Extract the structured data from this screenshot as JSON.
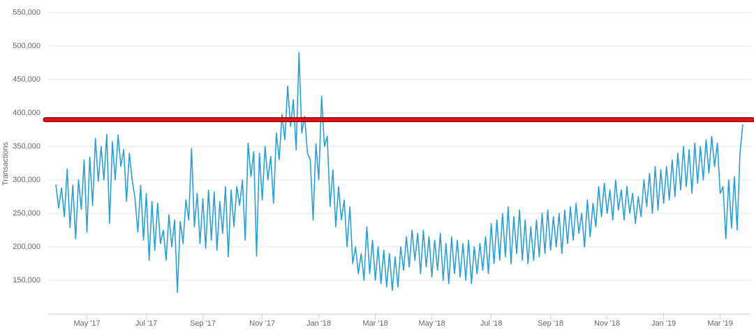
{
  "chart_data": {
    "type": "line",
    "y_label": "Transactions",
    "categories": [
      null,
      null,
      null,
      null,
      null,
      null,
      null,
      null,
      null,
      null,
      null,
      "May '17",
      null,
      null,
      null,
      null,
      null,
      null,
      null,
      null,
      null,
      null,
      null,
      null,
      null,
      null,
      null,
      null,
      null,
      null,
      null,
      null,
      "Jul '17",
      null,
      null,
      null,
      null,
      null,
      null,
      null,
      null,
      null,
      null,
      null,
      null,
      null,
      null,
      null,
      null,
      null,
      null,
      null,
      "Sep '17",
      null,
      null,
      null,
      null,
      null,
      null,
      null,
      null,
      null,
      null,
      null,
      null,
      null,
      null,
      null,
      null,
      null,
      null,
      null,
      null,
      "Nov '17",
      null,
      null,
      null,
      null,
      null,
      null,
      null,
      null,
      null,
      null,
      null,
      null,
      null,
      null,
      null,
      null,
      null,
      null,
      null,
      "Jan '18",
      null,
      null,
      null,
      null,
      null,
      null,
      null,
      null,
      null,
      null,
      null,
      null,
      null,
      null,
      null,
      null,
      null,
      null,
      null,
      "Mar '18",
      null,
      null,
      null,
      null,
      null,
      null,
      null,
      null,
      null,
      null,
      null,
      null,
      null,
      null,
      null,
      null,
      null,
      null,
      null,
      "May '18",
      null,
      null,
      null,
      null,
      null,
      null,
      null,
      null,
      null,
      null,
      null,
      null,
      null,
      null,
      null,
      null,
      null,
      null,
      null,
      null,
      "Jul '18",
      null,
      null,
      null,
      null,
      null,
      null,
      null,
      null,
      null,
      null,
      null,
      null,
      null,
      null,
      null,
      null,
      null,
      null,
      null,
      null,
      "Sep '18",
      null,
      null,
      null,
      null,
      null,
      null,
      null,
      null,
      null,
      null,
      null,
      null,
      null,
      null,
      null,
      null,
      null,
      null,
      null,
      "Nov '18",
      null,
      null,
      null,
      null,
      null,
      null,
      null,
      null,
      null,
      null,
      null,
      null,
      null,
      null,
      null,
      null,
      null,
      null,
      null,
      "Jan '19",
      null,
      null,
      null,
      null,
      null,
      null,
      null,
      null,
      null,
      null,
      null,
      null,
      null,
      null,
      null,
      null,
      null,
      null,
      null,
      "Mar '19",
      null,
      null,
      null,
      null,
      null,
      null,
      null,
      null
    ],
    "series": [
      {
        "name": "Transactions",
        "color": "#2a9fd6",
        "values": [
          293000,
          258000,
          288000,
          245000,
          316000,
          229000,
          292000,
          212000,
          300000,
          256000,
          330000,
          222000,
          334000,
          262000,
          362000,
          298000,
          350000,
          300000,
          368000,
          235000,
          357000,
          300000,
          367000,
          320000,
          345000,
          268000,
          340000,
          300000,
          272000,
          222000,
          292000,
          210000,
          280000,
          180000,
          268000,
          195000,
          265000,
          205000,
          225000,
          180000,
          248000,
          200000,
          240000,
          132000,
          238000,
          205000,
          270000,
          240000,
          347000,
          230000,
          280000,
          205000,
          272000,
          198000,
          285000,
          210000,
          282000,
          195000,
          268000,
          220000,
          290000,
          185000,
          285000,
          230000,
          290000,
          262000,
          300000,
          210000,
          355000,
          305000,
          342000,
          186000,
          340000,
          270000,
          350000,
          300000,
          335000,
          265000,
          370000,
          330000,
          398000,
          360000,
          440000,
          380000,
          420000,
          345000,
          490000,
          370000,
          395000,
          340000,
          330000,
          240000,
          354000,
          300000,
          425000,
          350000,
          365000,
          260000,
          315000,
          230000,
          290000,
          240000,
          270000,
          200000,
          260000,
          175000,
          200000,
          160000,
          190000,
          150000,
          230000,
          160000,
          210000,
          150000,
          200000,
          145000,
          195000,
          140000,
          190000,
          135000,
          185000,
          140000,
          200000,
          165000,
          215000,
          170000,
          225000,
          180000,
          220000,
          160000,
          225000,
          170000,
          215000,
          155000,
          210000,
          165000,
          220000,
          150000,
          205000,
          145000,
          215000,
          160000,
          210000,
          155000,
          205000,
          150000,
          210000,
          145000,
          200000,
          160000,
          205000,
          165000,
          215000,
          160000,
          235000,
          175000,
          240000,
          180000,
          250000,
          185000,
          260000,
          175000,
          245000,
          190000,
          255000,
          180000,
          240000,
          175000,
          230000,
          180000,
          240000,
          185000,
          250000,
          190000,
          255000,
          195000,
          245000,
          200000,
          250000,
          190000,
          255000,
          205000,
          260000,
          210000,
          265000,
          220000,
          250000,
          200000,
          270000,
          215000,
          265000,
          230000,
          290000,
          245000,
          295000,
          250000,
          285000,
          240000,
          300000,
          255000,
          285000,
          240000,
          290000,
          250000,
          280000,
          235000,
          275000,
          245000,
          300000,
          260000,
          310000,
          250000,
          320000,
          255000,
          315000,
          265000,
          320000,
          270000,
          330000,
          275000,
          340000,
          285000,
          350000,
          290000,
          345000,
          280000,
          355000,
          295000,
          350000,
          300000,
          360000,
          310000,
          365000,
          320000,
          355000,
          280000,
          290000,
          212000,
          300000,
          228000,
          305000,
          225000,
          340000,
          383000
        ]
      }
    ],
    "reference_line": {
      "value": 390000,
      "color": "#e8121b"
    },
    "ylim": [
      100000,
      550000
    ],
    "yticks": [
      {
        "value": 150000,
        "label": "150,000"
      },
      {
        "value": 200000,
        "label": "200,000"
      },
      {
        "value": 250000,
        "label": "250,000"
      },
      {
        "value": 300000,
        "label": "300,000"
      },
      {
        "value": 350000,
        "label": "350,000"
      },
      {
        "value": 400000,
        "label": "400,000"
      },
      {
        "value": 450000,
        "label": "450,000"
      },
      {
        "value": 500000,
        "label": "500,000"
      },
      {
        "value": 550000,
        "label": "550,000"
      }
    ],
    "grid": true
  }
}
